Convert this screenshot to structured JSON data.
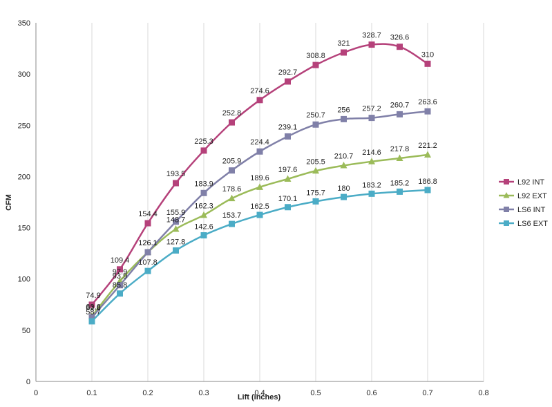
{
  "chart_data": {
    "type": "line",
    "title": "",
    "xlabel": "Lift (inches)",
    "ylabel": "CFM",
    "xlim": [
      0,
      0.8
    ],
    "ylim": [
      0,
      350
    ],
    "x_ticks": [
      "0",
      "0.1",
      "0.2",
      "0.3",
      "0.4",
      "0.5",
      "0.6",
      "0.7",
      "0.8"
    ],
    "y_ticks": [
      "0",
      "50",
      "100",
      "150",
      "200",
      "250",
      "300",
      "350"
    ],
    "grid": "vertical",
    "legend_position": "right",
    "x": [
      0.1,
      0.15,
      0.2,
      0.25,
      0.3,
      0.35,
      0.4,
      0.45,
      0.5,
      0.55,
      0.6,
      0.65,
      0.7
    ],
    "series": [
      {
        "name": "L92 INT",
        "color": "#b5417a",
        "marker": "square",
        "values": [
          74.9,
          109.4,
          154.4,
          193.5,
          225.3,
          252.8,
          274.6,
          292.7,
          308.8,
          321,
          328.7,
          326.6,
          310
        ],
        "labels": [
          "74.9",
          "109.4",
          "154.4",
          "193.5",
          "225.3",
          "252.8",
          "274.6",
          "292.7",
          "308.8",
          "321",
          "328.7",
          "326.6",
          "310"
        ]
      },
      {
        "name": "L92 EXT",
        "color": "#9bbb59",
        "marker": "triangle",
        "values": [
          63.6,
          97.9,
          126.1,
          148.7,
          162.3,
          178.6,
          189.6,
          197.6,
          205.5,
          210.7,
          214.6,
          217.8,
          221.2
        ],
        "labels": [
          "63.6",
          "97.9",
          "126.1",
          "148.7",
          "162.3",
          "178.6",
          "189.6",
          "197.6",
          "205.5",
          "210.7",
          "214.6",
          "217.8",
          "221.2"
        ]
      },
      {
        "name": "LS6 INT",
        "color": "#8080a8",
        "marker": "square",
        "values": [
          62.6,
          93.9,
          126.1,
          155.9,
          183.9,
          205.9,
          224.4,
          239.1,
          250.7,
          256,
          257.2,
          260.7,
          263.6
        ],
        "labels": [
          "62.6",
          "93.9",
          "126.1",
          "155.9",
          "183.9",
          "205.9",
          "224.4",
          "239.1",
          "250.7",
          "256",
          "257.2",
          "260.7",
          "263.6"
        ]
      },
      {
        "name": "LS6 EXT",
        "color": "#4bacc6",
        "marker": "square",
        "values": [
          58.7,
          85.8,
          107.8,
          127.8,
          142.6,
          153.7,
          162.5,
          170.1,
          175.7,
          180,
          183.2,
          185.2,
          186.8
        ],
        "labels": [
          "58.7",
          "85.8",
          "107.8",
          "127.8",
          "142.6",
          "153.7",
          "162.5",
          "170.1",
          "175.7",
          "180",
          "183.2",
          "185.2",
          "186.8"
        ]
      }
    ]
  }
}
